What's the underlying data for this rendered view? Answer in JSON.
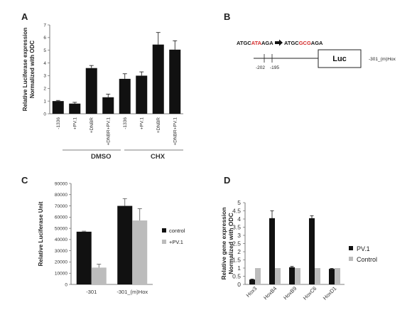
{
  "colors": {
    "black": "#111111",
    "gray": "#bcbcbc",
    "red": "#d42a2a",
    "axis": "#555555"
  },
  "panel_a": {
    "letter": "A",
    "group_labels": [
      "DMSO",
      "CHX"
    ]
  },
  "panel_b": {
    "letter": "B",
    "seq_parts": [
      {
        "text": "ATGC",
        "red": false
      },
      {
        "text": "ATA",
        "red": true
      },
      {
        "text": "AGA",
        "red": false
      },
      {
        "text": "ATGC",
        "red": false
      },
      {
        "text": "GCG",
        "red": true
      },
      {
        "text": "AGA",
        "red": false
      }
    ],
    "luc_label": "Luc",
    "construct_label": "-301_(m)Hox",
    "pos1": "-202",
    "pos2": "-195"
  },
  "panel_c": {
    "letter": "C"
  },
  "panel_d": {
    "letter": "D"
  },
  "chart_data": [
    {
      "type": "bar",
      "panel": "A",
      "ylabel": [
        "Relative Luciferase expression",
        "Normalized with ODC"
      ],
      "ylim": [
        0,
        7
      ],
      "yticks": [
        0,
        1,
        2,
        3,
        4,
        5,
        6,
        7
      ],
      "categories": [
        "-1336",
        "+PV.1",
        "+DNBR",
        "+DNBR+PV.1",
        "-1336",
        "+PV.1",
        "+DNBR",
        "+DNBR+PV.1"
      ],
      "values": [
        1.0,
        0.8,
        3.6,
        1.3,
        2.75,
        3.0,
        5.45,
        5.05
      ],
      "errors": [
        0.05,
        0.1,
        0.2,
        0.25,
        0.4,
        0.3,
        0.95,
        0.7
      ]
    },
    {
      "type": "bar",
      "panel": "C",
      "ylabel": "Relative Luciferase Unit",
      "ylim": [
        0,
        90000
      ],
      "yticks": [
        0,
        10000,
        20000,
        30000,
        40000,
        50000,
        60000,
        70000,
        80000,
        90000
      ],
      "categories": [
        "-301",
        "-301_(m)Hox"
      ],
      "series": [
        {
          "name": "control",
          "values": [
            47000,
            70000
          ],
          "errors": [
            500,
            6500
          ]
        },
        {
          "name": "+PV.1",
          "values": [
            15000,
            57000
          ],
          "errors": [
            3000,
            10500
          ]
        }
      ]
    },
    {
      "type": "bar",
      "panel": "D",
      "ylabel": [
        "Relative gene expression",
        "Normalized with ODC"
      ],
      "ylim": [
        0,
        5
      ],
      "yticks": [
        0,
        0.5,
        1,
        1.5,
        2,
        2.5,
        3,
        3.5,
        4,
        4.5,
        5
      ],
      "yticklabels": [
        "0",
        "0.5",
        "1",
        "1.5",
        "2",
        "2.5",
        "3",
        "3.5",
        "4",
        "4.5",
        "5"
      ],
      "categories": [
        "Hox3",
        "HoxB4",
        "HoxB9",
        "HoxC6",
        "HoxD1"
      ],
      "series": [
        {
          "name": "PV.1",
          "values": [
            0.3,
            4.05,
            1.05,
            4.05,
            0.95
          ],
          "errors": [
            0.03,
            0.45,
            0.05,
            0.15,
            0.03
          ]
        },
        {
          "name": "Control",
          "values": [
            1.0,
            1.0,
            1.0,
            1.0,
            1.0
          ],
          "errors": [
            0,
            0,
            0,
            0,
            0
          ]
        }
      ]
    }
  ]
}
